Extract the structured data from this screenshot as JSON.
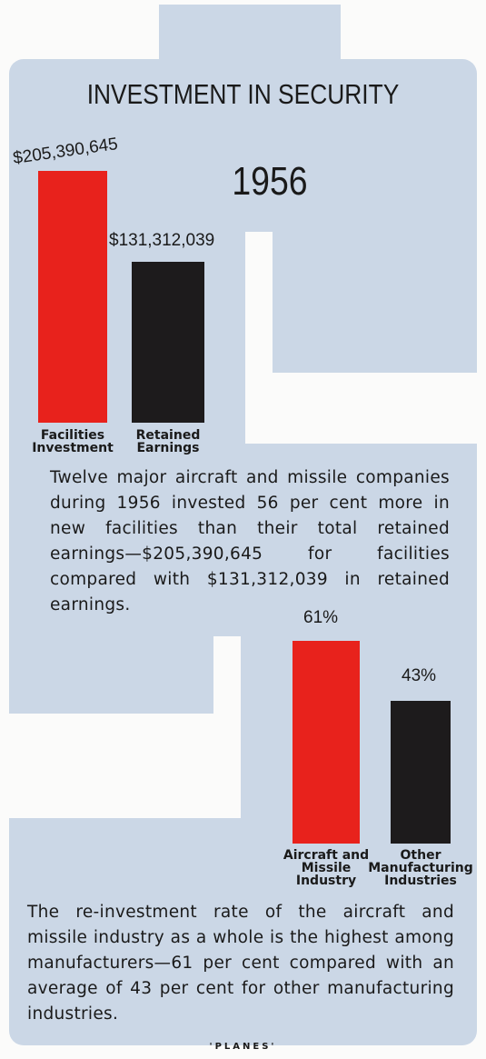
{
  "title": "INVESTMENT IN SECURITY",
  "chart_data": [
    {
      "type": "bar",
      "subtitle": "1956",
      "categories": [
        "Facilities Investment",
        "Retained Earnings"
      ],
      "values": [
        205390645,
        131312039
      ],
      "value_labels": [
        "$205,390,645",
        "$131,312,039"
      ],
      "colors": [
        "#e8221c",
        "#1d1b1c"
      ],
      "caption": "Twelve major aircraft and missile companies during 1956 invested 56 per cent more in new facilities than their total retained earnings—$205,390,645 for facilities compared with $131,312,039 in retained earnings."
    },
    {
      "type": "bar",
      "categories": [
        "Aircraft and Missile Industry",
        "Other Manufacturing Industries"
      ],
      "values": [
        61,
        43
      ],
      "value_labels": [
        "61%",
        "43%"
      ],
      "colors": [
        "#e8221c",
        "#1d1b1c"
      ],
      "caption": "The re-investment rate of the aircraft and missile industry as a whole is the highest among manufacturers—61 per cent compared with an average of 43 per cent for other manufacturing industries."
    }
  ],
  "footer": "'PLANES'"
}
